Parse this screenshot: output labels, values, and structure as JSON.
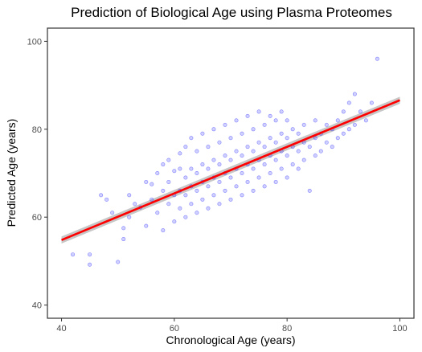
{
  "chart_data": {
    "type": "scatter",
    "title": "Prediction of Biological Age using Plasma Proteomes",
    "xlabel": "Chronological Age (years)",
    "ylabel": "Predicted Age (years)",
    "xlim": [
      37.5,
      102.5
    ],
    "ylim": [
      37,
      103
    ],
    "x_ticks": [
      40,
      60,
      80,
      100
    ],
    "y_ticks": [
      40,
      60,
      80,
      100
    ],
    "grid": false,
    "legend": "none",
    "colors": {
      "points": "#0000ff",
      "fit_line": "#ff0000",
      "confidence_band": "#bdbdbd"
    },
    "fit_line": {
      "x": [
        40,
        100
      ],
      "y": [
        54.8,
        86.6
      ]
    },
    "confidence_band": {
      "x": [
        40,
        100
      ],
      "lower": [
        54.0,
        85.8
      ],
      "upper": [
        55.6,
        87.4
      ]
    },
    "points": {
      "x": [
        42,
        45,
        45,
        47,
        48,
        49,
        50,
        51,
        51,
        52,
        52,
        53,
        54,
        55,
        55,
        56,
        56,
        57,
        57,
        58,
        58,
        58,
        59,
        59,
        59,
        60,
        60,
        60,
        61,
        61,
        61,
        61,
        62,
        62,
        62,
        62,
        63,
        63,
        63,
        63,
        64,
        64,
        64,
        64,
        65,
        65,
        65,
        65,
        66,
        66,
        66,
        66,
        67,
        67,
        67,
        67,
        68,
        68,
        68,
        68,
        69,
        69,
        69,
        69,
        70,
        70,
        70,
        70,
        71,
        71,
        71,
        71,
        72,
        72,
        72,
        72,
        73,
        73,
        73,
        73,
        74,
        74,
        74,
        74,
        75,
        75,
        75,
        75,
        76,
        76,
        76,
        76,
        77,
        77,
        77,
        77,
        78,
        78,
        78,
        78,
        79,
        79,
        79,
        79,
        80,
        80,
        80,
        80,
        81,
        81,
        81,
        82,
        82,
        82,
        83,
        83,
        83,
        84,
        84,
        85,
        85,
        85,
        86,
        86,
        87,
        87,
        88,
        88,
        89,
        89,
        90,
        90,
        91,
        91,
        92,
        92,
        93,
        94,
        95,
        96
      ],
      "y": [
        51.5,
        51.5,
        49.2,
        65,
        64,
        61,
        49.8,
        57.5,
        55,
        60,
        65,
        63,
        62.2,
        58,
        68,
        64,
        67.5,
        61,
        70,
        57,
        66,
        72,
        63,
        68,
        73,
        59,
        65,
        70.5,
        62,
        66,
        71,
        74.5,
        60,
        65,
        69,
        76,
        63,
        67,
        71,
        78,
        61,
        66,
        70,
        75,
        64,
        68,
        72,
        79,
        62,
        67,
        71,
        76,
        65,
        69,
        73,
        80,
        63,
        68,
        72,
        77,
        66,
        70,
        74,
        81,
        64,
        69,
        73,
        78,
        67,
        71,
        75,
        82,
        65,
        70,
        74,
        79,
        68,
        72,
        76,
        83,
        66,
        71,
        75,
        80,
        69,
        73,
        77,
        84,
        67,
        72,
        76,
        81,
        70,
        74,
        78,
        83,
        68,
        73,
        77,
        82,
        71,
        75,
        79,
        84,
        69,
        74,
        78,
        82,
        72,
        76,
        80,
        71,
        75,
        79,
        73,
        77,
        81,
        66,
        76,
        74,
        78,
        82,
        75,
        79,
        77,
        81,
        76,
        80,
        78,
        82,
        79,
        84,
        80,
        86,
        81,
        88,
        84,
        82,
        86,
        96
      ]
    }
  }
}
